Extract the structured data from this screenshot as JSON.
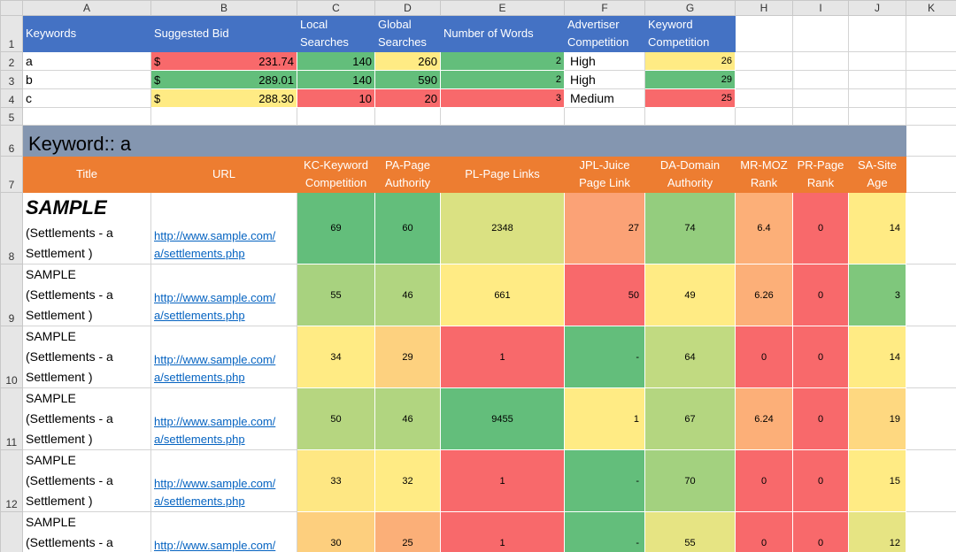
{
  "columns": [
    "A",
    "B",
    "C",
    "D",
    "E",
    "F",
    "G",
    "H",
    "I",
    "J",
    "K"
  ],
  "row_numbers": [
    "1",
    "2",
    "3",
    "4",
    "5",
    "6",
    "7",
    "8",
    "9",
    "10",
    "11",
    "12",
    "13"
  ],
  "summary": {
    "headers": [
      "Keywords",
      "Suggested Bid",
      "Local Searches",
      "Global Searches",
      "Number of Words",
      "Advertiser Competition",
      "Keyword Competition"
    ],
    "currency": "$",
    "rows": [
      {
        "keyword": "a",
        "bid": "231.74",
        "bid_color": "#F8696B",
        "local": "140",
        "local_color": "#63BE7B",
        "global": "260",
        "global_color": "#FFEB84",
        "words": "2",
        "words_color": "#63BE7B",
        "adv": "High",
        "kc": "26",
        "kc_color": "#FFEB84"
      },
      {
        "keyword": "b",
        "bid": "289.01",
        "bid_color": "#63BE7B",
        "local": "140",
        "local_color": "#63BE7B",
        "global": "590",
        "global_color": "#63BE7B",
        "words": "2",
        "words_color": "#63BE7B",
        "adv": "High",
        "kc": "29",
        "kc_color": "#63BE7B"
      },
      {
        "keyword": "c",
        "bid": "288.30",
        "bid_color": "#FFEB84",
        "local": "10",
        "local_color": "#F8696B",
        "global": "20",
        "global_color": "#F8696B",
        "words": "3",
        "words_color": "#F8696B",
        "adv": "Medium",
        "kc": "25",
        "kc_color": "#F8696B"
      }
    ]
  },
  "keyword_section": {
    "title": "Keyword::  a",
    "headers": [
      "Title",
      "URL",
      "KC-Keyword Competition",
      "PA-Page Authority",
      "PL-Page Links",
      "JPL-Juice Page Link",
      "DA-Domain Authority",
      "MR-MOZ Rank",
      "PR-Page Rank",
      "SA-Site Age"
    ],
    "rows": [
      {
        "title_main": "SAMPLE",
        "title_sub": "(Settlements - a Settlement )",
        "url": "http://www.sample.com/ a/settlements.php",
        "values": [
          "69",
          "60",
          "2348",
          "27",
          "74",
          "6.4",
          "0",
          "14"
        ],
        "colors": [
          "#63BE7B",
          "#63BE7B",
          "#DAE182",
          "#FBA276",
          "#94CD7E",
          "#FCAF78",
          "#F8696B",
          "#FFEB84"
        ]
      },
      {
        "title_main": "SAMPLE",
        "title_sub": "(Settlements - a Settlement )",
        "url": "http://www.sample.com/ a/settlements.php",
        "values": [
          "55",
          "46",
          "661",
          "50",
          "49",
          "6.26",
          "0",
          "3"
        ],
        "colors": [
          "#A8D27F",
          "#B1D580",
          "#FFEB84",
          "#F8696B",
          "#FFEB84",
          "#FCAF78",
          "#F8696B",
          "#7FC77C"
        ]
      },
      {
        "title_main": "SAMPLE",
        "title_sub": "(Settlements - a Settlement )",
        "url": "http://www.sample.com/ a/settlements.php",
        "values": [
          "34",
          "29",
          "1",
          "-",
          "64",
          "0",
          "0",
          "14"
        ],
        "colors": [
          "#FFEB84",
          "#FDD17F",
          "#F8696B",
          "#63BE7B",
          "#C1DA81",
          "#F8696B",
          "#F8696B",
          "#FFEB84"
        ]
      },
      {
        "title_main": "SAMPLE",
        "title_sub": "(Settlements - a Settlement )",
        "url": "http://www.sample.com/ a/settlements.php",
        "values": [
          "50",
          "46",
          "9455",
          "1",
          "67",
          "6.24",
          "0",
          "19"
        ],
        "colors": [
          "#B6D680",
          "#B1D580",
          "#63BE7B",
          "#FFEB84",
          "#B4D680",
          "#FCAF78",
          "#F8696B",
          "#FED880"
        ]
      },
      {
        "title_main": "SAMPLE",
        "title_sub": "(Settlements - a Settlement )",
        "url": "http://www.sample.com/ a/settlements.php",
        "values": [
          "33",
          "32",
          "1",
          "-",
          "70",
          "0",
          "0",
          "15"
        ],
        "colors": [
          "#FEE783",
          "#FFEB84",
          "#F8696B",
          "#63BE7B",
          "#A3D17F",
          "#F8696B",
          "#F8696B",
          "#FFEB84"
        ]
      },
      {
        "title_main": "SAMPLE",
        "title_sub": "(Settlements - a Settlement )",
        "url": "http://www.sample.com/ a/settlements.php",
        "values": [
          "30",
          "25",
          "1",
          "-",
          "55",
          "0",
          "0",
          "12"
        ],
        "colors": [
          "#FDCF7E",
          "#FBAF78",
          "#F8696B",
          "#63BE7B",
          "#E6E483",
          "#F8696B",
          "#F8696B",
          "#E6E483"
        ]
      }
    ]
  }
}
